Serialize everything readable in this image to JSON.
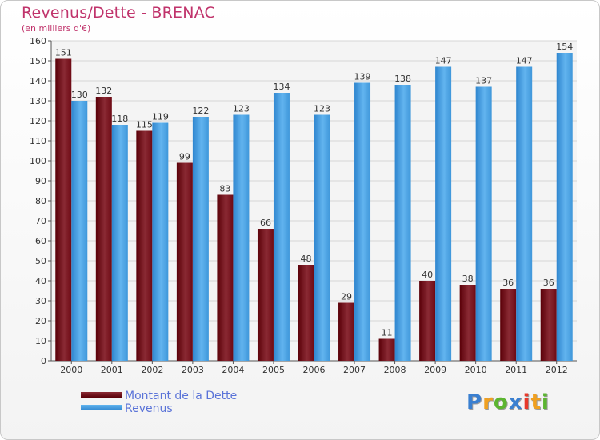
{
  "chart_data": {
    "type": "bar",
    "title": "Revenus/Dette - BRENAC",
    "subtitle": "(en milliers d'€)",
    "categories": [
      "2000",
      "2001",
      "2002",
      "2003",
      "2004",
      "2005",
      "2006",
      "2007",
      "2008",
      "2009",
      "2010",
      "2011",
      "2012"
    ],
    "series": [
      {
        "name": "Montant de la Dette",
        "color": "#7a0c18",
        "values": [
          151,
          132,
          115,
          99,
          83,
          66,
          48,
          29,
          11,
          40,
          38,
          36,
          36
        ]
      },
      {
        "name": "Revenus",
        "color": "#4ba3e3",
        "values": [
          130,
          118,
          119,
          122,
          123,
          134,
          123,
          139,
          138,
          147,
          137,
          147,
          154
        ]
      }
    ],
    "ylim": [
      0,
      160
    ],
    "yticks": [
      0,
      10,
      20,
      30,
      40,
      50,
      60,
      70,
      80,
      90,
      100,
      110,
      120,
      130,
      140,
      150,
      160
    ],
    "grid": true,
    "legend_position": "bottom-left"
  },
  "logo": {
    "letters": [
      "P",
      "r",
      "o",
      "x",
      "i",
      "t",
      "i"
    ],
    "colors": [
      "#3a7fd0",
      "#f0a020",
      "#5cb531",
      "#3a7fd0",
      "#e8392a",
      "#f0a020",
      "#5cb531"
    ]
  }
}
